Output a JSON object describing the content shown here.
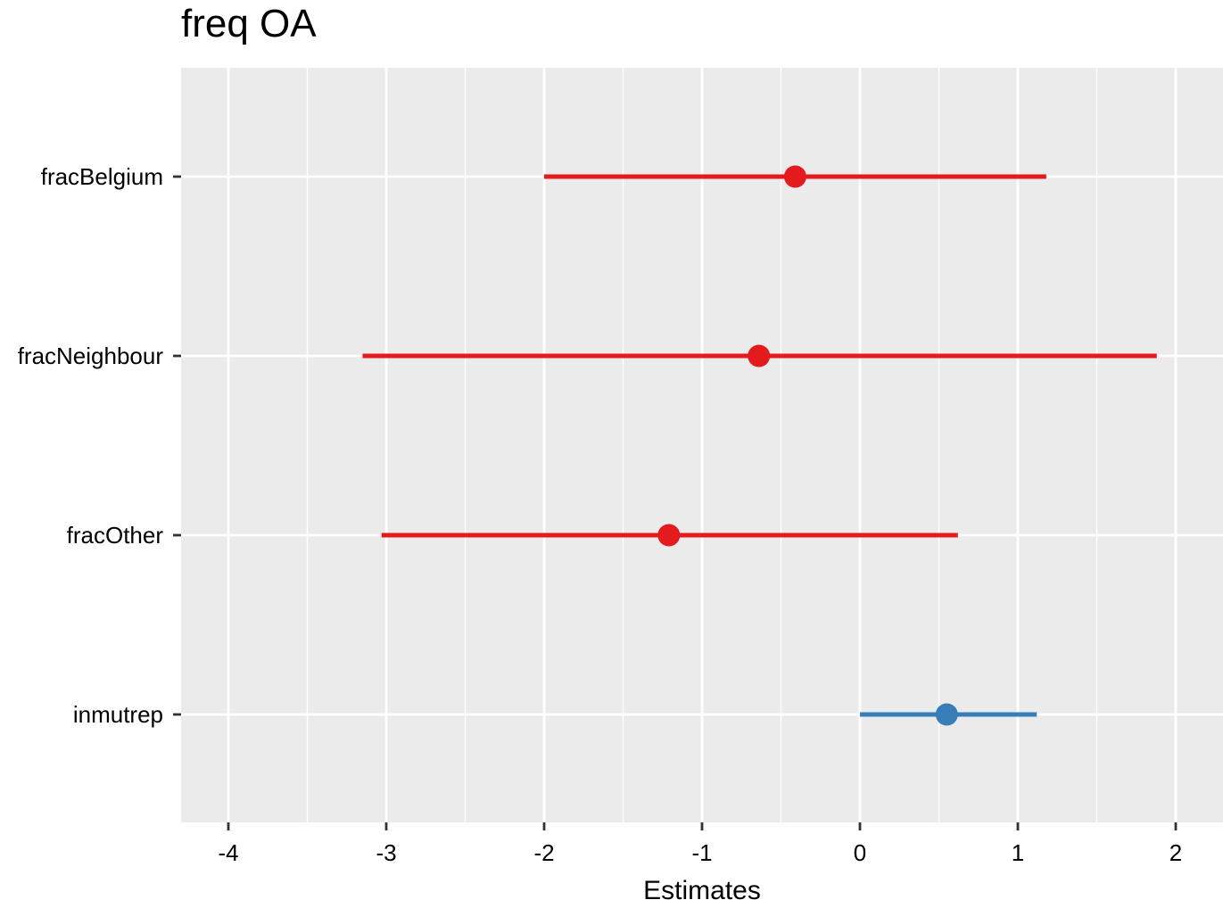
{
  "chart_data": {
    "type": "forest",
    "title": "freq OA",
    "xlabel": "Estimates",
    "ylabel": "",
    "xlim": [
      -4.3,
      2.3
    ],
    "x_ticks": [
      -4,
      -3,
      -2,
      -1,
      0,
      1,
      2
    ],
    "x_tick_labels": [
      "-4",
      "-3",
      "-2",
      "-1",
      "0",
      "1",
      "2"
    ],
    "grid": true,
    "terms": [
      {
        "label": "fracBelgium",
        "estimate": -0.41,
        "conf_low": -2.0,
        "conf_high": 1.18,
        "color": "#E41A1C"
      },
      {
        "label": "fracNeighbour",
        "estimate": -0.64,
        "conf_low": -3.15,
        "conf_high": 1.88,
        "color": "#E41A1C"
      },
      {
        "label": "fracOther",
        "estimate": -1.21,
        "conf_low": -3.03,
        "conf_high": 0.62,
        "color": "#E41A1C"
      },
      {
        "label": "inmutrep",
        "estimate": 0.55,
        "conf_low": 0.0,
        "conf_high": 1.12,
        "color": "#377EB8"
      }
    ],
    "colors": {
      "panel_background": "#EBEBEB",
      "grid_line": "#FFFFFF",
      "text": "#000000",
      "axis_text": "#333333",
      "negative": "#E41A1C",
      "positive": "#377EB8"
    }
  }
}
